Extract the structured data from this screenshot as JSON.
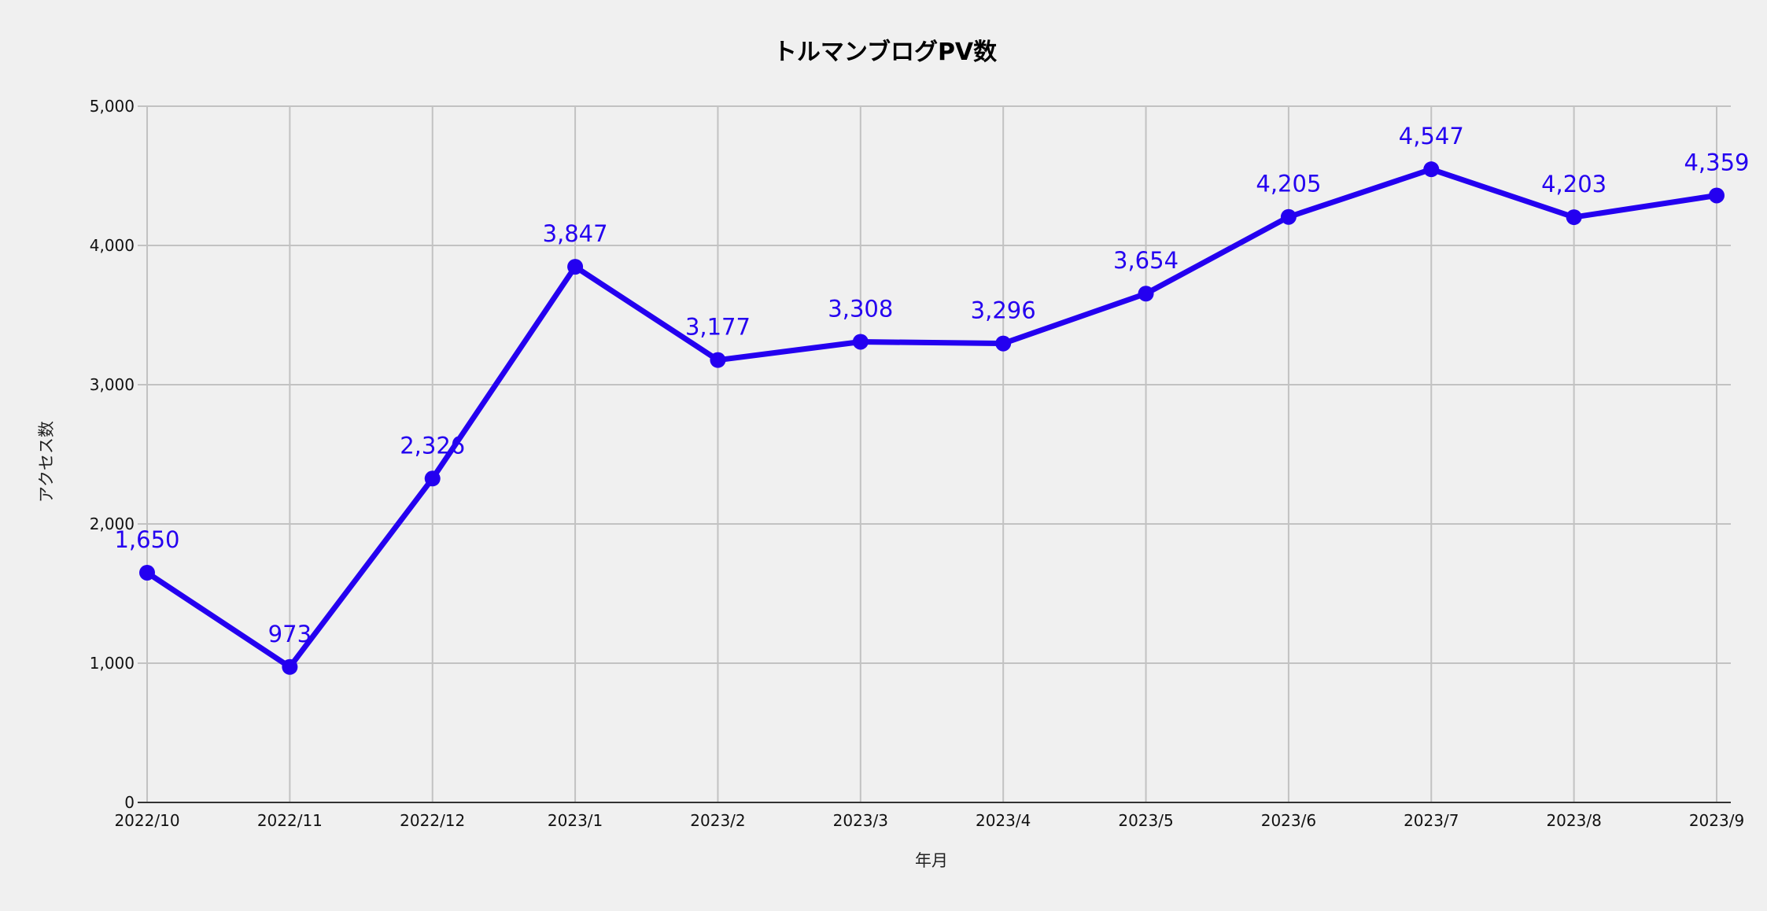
{
  "chart_data": {
    "type": "line",
    "title": "トルマンブログPV数",
    "xlabel": "年月",
    "ylabel": "アクセス数",
    "categories": [
      "2022/10",
      "2022/11",
      "2022/12",
      "2023/1",
      "2023/2",
      "2023/3",
      "2023/4",
      "2023/5",
      "2023/6",
      "2023/7",
      "2023/8",
      "2023/9"
    ],
    "series": [
      {
        "values": [
          1650,
          973,
          2326,
          3847,
          3177,
          3308,
          3296,
          3654,
          4205,
          4547,
          4203,
          4359
        ],
        "value_labels": [
          "1,650",
          "973",
          "2,326",
          "3,847",
          "3,177",
          "3,308",
          "3,296",
          "3,654",
          "4,205",
          "4,547",
          "4,203",
          "4,359"
        ],
        "color": "#2400f0"
      }
    ],
    "y_ticks": [
      {
        "value": 0,
        "label": "0"
      },
      {
        "value": 1000,
        "label": "1,000"
      },
      {
        "value": 2000,
        "label": "2,000"
      },
      {
        "value": 3000,
        "label": "3,000"
      },
      {
        "value": 4000,
        "label": "4,000"
      },
      {
        "value": 5000,
        "label": "5,000"
      }
    ],
    "ylim": [
      0,
      5000
    ],
    "grid": true,
    "data_labels": true,
    "legend": "none"
  }
}
